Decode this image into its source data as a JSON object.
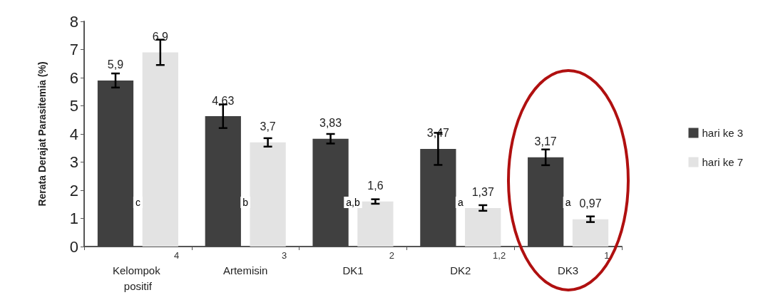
{
  "chart_data": {
    "type": "bar",
    "ylabel": "Rerata Derajat Parasitemia (%)",
    "categories": [
      "Kelompok positif",
      "Artemisin",
      "DK1",
      "DK2",
      "DK3"
    ],
    "series": [
      {
        "name": "hari ke 3",
        "color": "#404040",
        "values": [
          5.9,
          4.63,
          3.83,
          3.47,
          3.17
        ],
        "errors": [
          0.25,
          0.42,
          0.17,
          0.57,
          0.28
        ],
        "value_labels": [
          "5,9",
          "4,63",
          "3,83",
          "3,47",
          "3,17"
        ]
      },
      {
        "name": "hari ke 7",
        "color": "#e3e3e3",
        "values": [
          6.9,
          3.7,
          1.6,
          1.37,
          0.97
        ],
        "errors": [
          0.45,
          0.15,
          0.08,
          0.1,
          0.1
        ],
        "value_labels": [
          "6,9",
          "3,7",
          "1,6",
          "1,37",
          "0,97"
        ]
      }
    ],
    "ylim": [
      0,
      8
    ],
    "yticks": [
      0,
      1,
      2,
      3,
      4,
      5,
      6,
      7,
      8
    ],
    "grid": false,
    "legend": "right",
    "annotations": [
      "c",
      "b",
      "a,b",
      "a",
      "a",
      "4",
      "3",
      "2",
      "1,2",
      "1"
    ]
  }
}
